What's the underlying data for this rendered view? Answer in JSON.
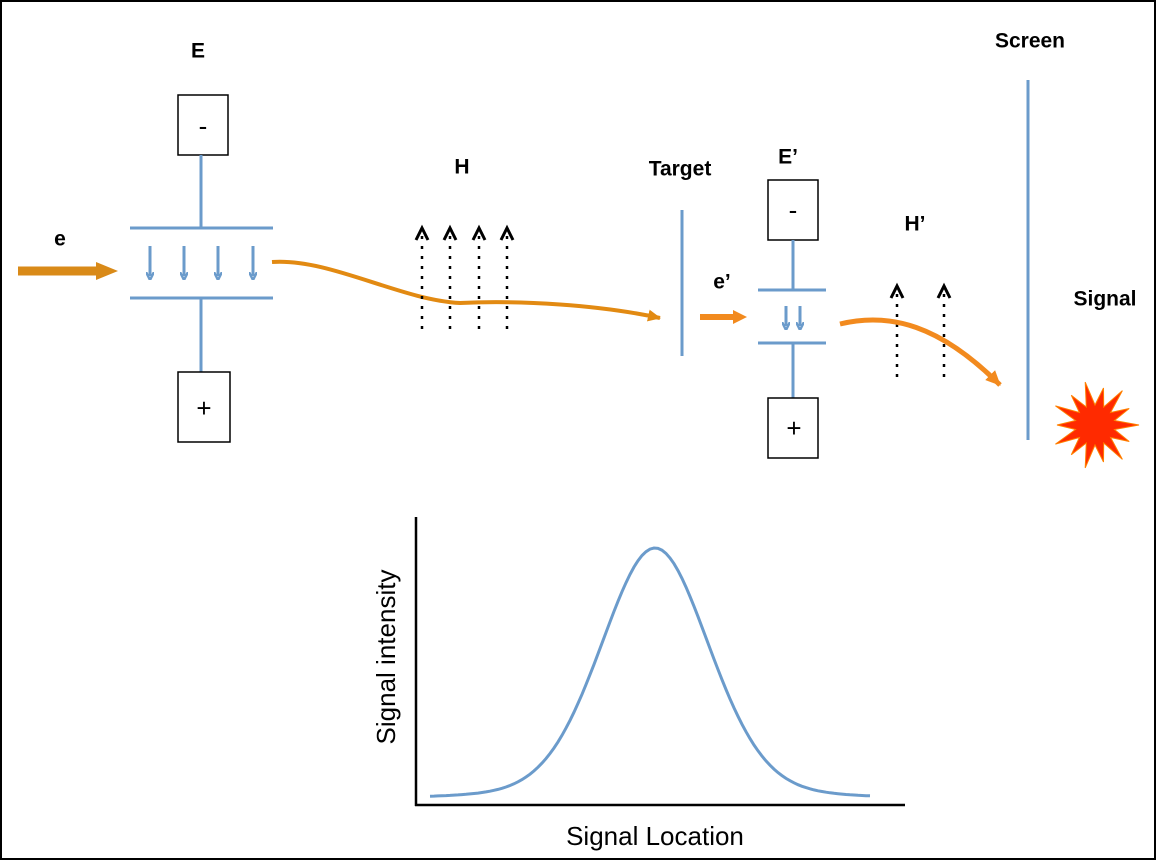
{
  "labels": {
    "E": "E",
    "E_minus": "-",
    "E_plus": "+",
    "e": "e",
    "H": "H",
    "target": "Target",
    "e_prime": "e’",
    "E_prime": "E’",
    "E_prime_minus": "-",
    "E_prime_plus": "+",
    "H_prime": "H’",
    "screen": "Screen",
    "signal": "Signal"
  },
  "graph": {
    "y_label": "Signal intensity",
    "x_label": "Signal Location"
  }
}
